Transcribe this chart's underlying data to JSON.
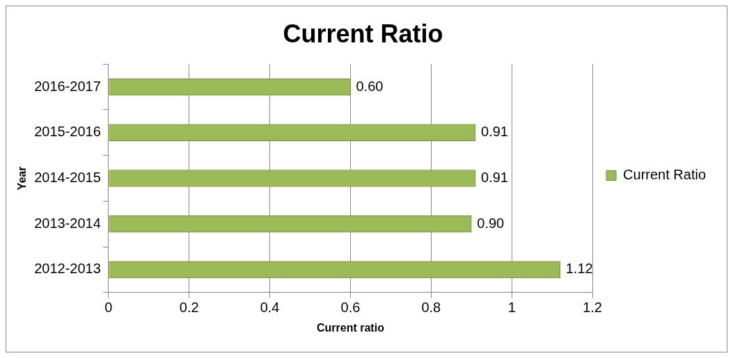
{
  "chart_data": {
    "type": "bar",
    "orientation": "horizontal",
    "title": "Current Ratio",
    "xlabel": "Current ratio",
    "ylabel": "Year",
    "categories": [
      "2016-2017",
      "2015-2016",
      "2014-2015",
      "2013-2014",
      "2012-2013"
    ],
    "series": [
      {
        "name": "Current Ratio",
        "color": "#9bbb59",
        "values": [
          0.6,
          0.91,
          0.91,
          0.9,
          1.12
        ],
        "value_labels": [
          "0.60",
          "0.91",
          "0.91",
          "0.90",
          "1.12"
        ]
      }
    ],
    "xlim": [
      0,
      1.2
    ],
    "xticks": [
      0,
      0.2,
      0.4,
      0.6,
      0.8,
      1,
      1.2
    ],
    "grid": "x",
    "legend": "right"
  }
}
